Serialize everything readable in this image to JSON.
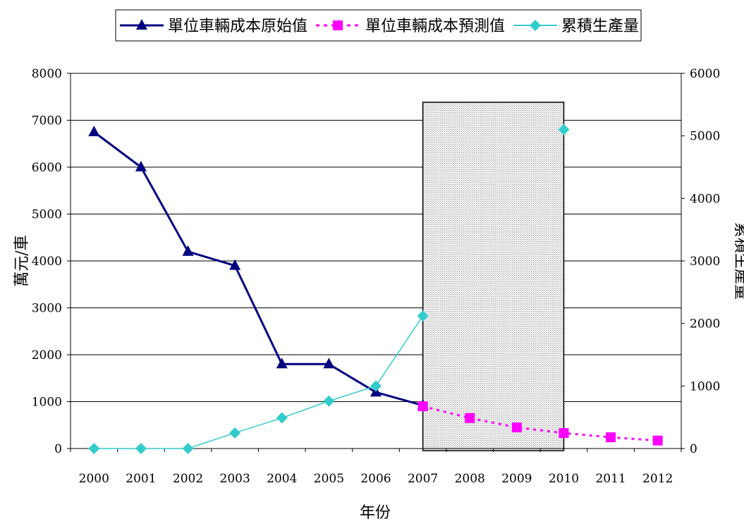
{
  "chart_data": {
    "type": "line",
    "legend_position": "top",
    "grid": true,
    "categories": [
      "2000",
      "2001",
      "2002",
      "2003",
      "2004",
      "2005",
      "2006",
      "2007",
      "2008",
      "2009",
      "2010",
      "2011",
      "2012"
    ],
    "xlabel": "年份",
    "ylabel": "萬元/車",
    "y2label": "累積生產量",
    "ylim": [
      0,
      8000
    ],
    "y2lim": [
      0,
      6000
    ],
    "yticks": [
      0,
      1000,
      2000,
      3000,
      4000,
      5000,
      6000,
      7000,
      8000
    ],
    "y2ticks": [
      0,
      1000,
      2000,
      3000,
      4000,
      5000,
      6000
    ],
    "highlight_range": [
      "2007",
      "2010"
    ],
    "series": [
      {
        "name": "單位車輛成本原始值",
        "axis": "left",
        "color": "#000080",
        "marker": "triangle",
        "line": "solid",
        "values": [
          6750,
          6000,
          4200,
          3900,
          1800,
          1800,
          1200,
          920,
          null,
          null,
          null,
          null,
          null
        ]
      },
      {
        "name": "單位車輛成本預測值",
        "axis": "left",
        "color": "#ff00ff",
        "marker": "square",
        "line": "dotted",
        "values": [
          null,
          null,
          null,
          null,
          null,
          null,
          null,
          900,
          650,
          450,
          330,
          240,
          170
        ]
      },
      {
        "name": "累積生產量",
        "axis": "right",
        "color": "#33cccc",
        "marker": "diamond",
        "line": "solid",
        "values": [
          0,
          0,
          0,
          250,
          490,
          760,
          1000,
          2120,
          null,
          null,
          5100,
          null,
          null
        ]
      }
    ]
  }
}
